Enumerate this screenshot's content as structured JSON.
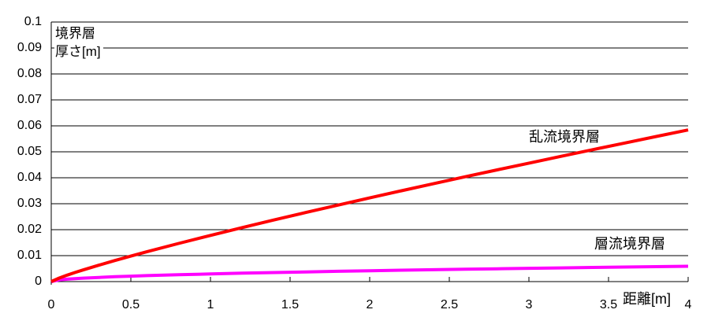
{
  "chart_data": {
    "type": "line",
    "title": "",
    "y_axis_title_line1": "境界層",
    "y_axis_title_line2": "厚さ[m]",
    "x_axis_title": "距離[m]",
    "xlim": [
      0,
      4
    ],
    "ylim": [
      0,
      0.1
    ],
    "x_tick_labels": [
      "0",
      "0.5",
      "1",
      "1.5",
      "2",
      "2.5",
      "3",
      "3.5",
      "4"
    ],
    "y_tick_labels": [
      "0",
      "0.01",
      "0.02",
      "0.03",
      "0.04",
      "0.05",
      "0.06",
      "0.07",
      "0.08",
      "0.09",
      "0.1"
    ],
    "grid": "horizontal-only",
    "legend": "none (labels drawn on plot)",
    "background_color": "#ffffff",
    "gridline_color": "#000000",
    "series": [
      {
        "id": "laminar",
        "name": "層流境界層",
        "color": "#ff00ff",
        "line_width": 4,
        "points": [
          [
            0,
            0
          ],
          [
            0.05,
            0.00066
          ],
          [
            0.1,
            0.00093
          ],
          [
            0.15,
            0.00114
          ],
          [
            0.2,
            0.00132
          ],
          [
            0.3,
            0.00162
          ],
          [
            0.4,
            0.00187
          ],
          [
            0.5,
            0.00209
          ],
          [
            0.6,
            0.00229
          ],
          [
            0.8,
            0.00264
          ],
          [
            1.0,
            0.00295
          ],
          [
            1.2,
            0.00323
          ],
          [
            1.4,
            0.00349
          ],
          [
            1.6,
            0.00373
          ],
          [
            1.8,
            0.00396
          ],
          [
            2.0,
            0.00417
          ],
          [
            2.2,
            0.00438
          ],
          [
            2.4,
            0.00457
          ],
          [
            2.6,
            0.00476
          ],
          [
            2.8,
            0.00494
          ],
          [
            3.0,
            0.00511
          ],
          [
            3.2,
            0.00528
          ],
          [
            3.4,
            0.00544
          ],
          [
            3.6,
            0.0056
          ],
          [
            3.8,
            0.00575
          ],
          [
            4.0,
            0.0059
          ]
        ]
      },
      {
        "id": "turbulent",
        "name": "乱流境界層",
        "color": "#ff0000",
        "line_width": 4,
        "points": [
          [
            0,
            0
          ],
          [
            0.05,
            0.00137
          ],
          [
            0.1,
            0.00247
          ],
          [
            0.15,
            0.0035
          ],
          [
            0.2,
            0.00448
          ],
          [
            0.3,
            0.00634
          ],
          [
            0.4,
            0.00811
          ],
          [
            0.5,
            0.00983
          ],
          [
            0.6,
            0.01149
          ],
          [
            0.8,
            0.0147
          ],
          [
            1.0,
            0.0178
          ],
          [
            1.2,
            0.02081
          ],
          [
            1.4,
            0.02375
          ],
          [
            1.6,
            0.02663
          ],
          [
            1.8,
            0.02946
          ],
          [
            2.0,
            0.03224
          ],
          [
            2.2,
            0.03499
          ],
          [
            2.4,
            0.0377
          ],
          [
            2.6,
            0.04038
          ],
          [
            2.8,
            0.04302
          ],
          [
            3.0,
            0.04564
          ],
          [
            3.2,
            0.04824
          ],
          [
            3.4,
            0.05081
          ],
          [
            3.6,
            0.05336
          ],
          [
            3.8,
            0.0559
          ],
          [
            4.0,
            0.05841
          ]
        ]
      }
    ]
  }
}
